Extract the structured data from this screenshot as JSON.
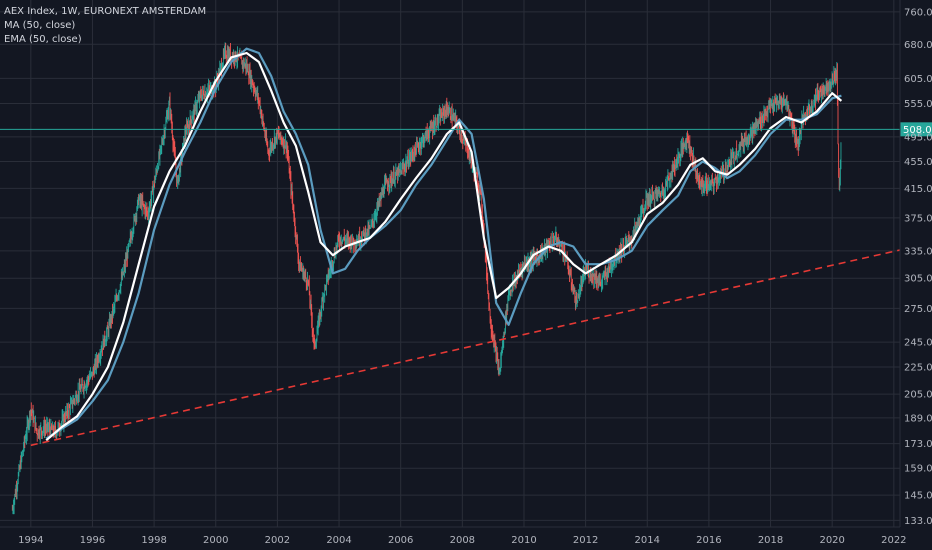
{
  "legend": {
    "title": "AEX Index, 1W, EURONEXT AMSTERDAM",
    "ma": "MA (50, close)",
    "ema": "EMA (50, close)"
  },
  "colors": {
    "background": "#131722",
    "grid": "#2a2e39",
    "up": "#26a69a",
    "down": "#ef5350",
    "ma": "#ffffff",
    "ema": "#5b9cc0",
    "trendline": "#e53935",
    "price_line": "#26a69a"
  },
  "chart_data": {
    "type": "candlestick",
    "title": "AEX Index, 1W, EURONEXT AMSTERDAM",
    "xlabel": "",
    "ylabel": "",
    "y_scale": "log",
    "ylim": [
      130,
      770
    ],
    "xlim": [
      1993.0,
      2022.2
    ],
    "grid": true,
    "y_ticks": [
      760.0,
      680.0,
      605.0,
      555.0,
      495.0,
      455.0,
      415.0,
      375.0,
      335.0,
      305.0,
      275.0,
      245.0,
      225.0,
      205.0,
      189.0,
      173.0,
      159.0,
      145.0,
      133.0
    ],
    "y_tick_labels": [
      "760.00",
      "680.00",
      "605.00",
      "555.00",
      "495.00",
      "455.00",
      "415.00",
      "375.00",
      "335.00",
      "305.00",
      "275.00",
      "245.00",
      "225.00",
      "205.00",
      "189.00",
      "173.00",
      "159.00",
      "145.00",
      "133.00"
    ],
    "x_ticks": [
      1994,
      1996,
      1998,
      2000,
      2002,
      2004,
      2006,
      2008,
      2010,
      2012,
      2014,
      2016,
      2018,
      2020,
      2022
    ],
    "last_price": 508.04,
    "last_price_label": "508.04",
    "series": [
      {
        "name": "AEX Index",
        "kind": "price",
        "x": [
          1993.4,
          1993.7,
          1994.0,
          1994.2,
          1994.5,
          1994.8,
          1995.0,
          1995.5,
          1996.0,
          1996.5,
          1997.0,
          1997.5,
          1997.8,
          1998.2,
          1998.5,
          1998.75,
          1999.0,
          1999.5,
          2000.0,
          2000.3,
          2000.7,
          2001.0,
          2001.4,
          2001.7,
          2002.0,
          2002.3,
          2002.7,
          2003.0,
          2003.2,
          2003.5,
          2004.0,
          2004.5,
          2005.0,
          2005.5,
          2006.0,
          2006.5,
          2007.0,
          2007.5,
          2007.8,
          2008.2,
          2008.6,
          2008.9,
          2009.2,
          2009.5,
          2010.0,
          2010.5,
          2011.0,
          2011.3,
          2011.7,
          2012.0,
          2012.5,
          2013.0,
          2013.5,
          2014.0,
          2014.5,
          2015.0,
          2015.3,
          2015.7,
          2016.1,
          2016.5,
          2017.0,
          2017.5,
          2018.0,
          2018.5,
          2018.9,
          2019.0,
          2019.5,
          2020.0,
          2020.15,
          2020.22,
          2020.3
        ],
        "y": [
          138,
          165,
          195,
          180,
          183,
          180,
          186,
          205,
          220,
          255,
          310,
          400,
          380,
          470,
          555,
          420,
          500,
          570,
          590,
          660,
          650,
          630,
          560,
          470,
          500,
          480,
          320,
          300,
          240,
          290,
          350,
          345,
          360,
          420,
          440,
          475,
          510,
          545,
          520,
          470,
          410,
          265,
          220,
          290,
          320,
          330,
          350,
          335,
          280,
          315,
          300,
          330,
          350,
          400,
          410,
          460,
          495,
          420,
          420,
          440,
          480,
          510,
          550,
          560,
          480,
          520,
          570,
          600,
          620,
          400,
          508
        ]
      },
      {
        "name": "MA (50, close)",
        "kind": "ma",
        "x": [
          1994.5,
          1995.0,
          1995.5,
          1996.0,
          1996.5,
          1997.0,
          1997.5,
          1998.0,
          1998.5,
          1999.0,
          1999.5,
          2000.0,
          2000.5,
          2001.0,
          2001.4,
          2001.8,
          2002.2,
          2002.6,
          2003.0,
          2003.4,
          2003.8,
          2004.2,
          2004.6,
          2005.0,
          2005.5,
          2006.0,
          2006.5,
          2007.0,
          2007.5,
          2007.9,
          2008.3,
          2008.7,
          2009.1,
          2009.5,
          2009.9,
          2010.3,
          2010.8,
          2011.2,
          2011.6,
          2012.0,
          2012.5,
          2013.0,
          2013.5,
          2014.0,
          2014.5,
          2015.0,
          2015.4,
          2015.8,
          2016.2,
          2016.6,
          2017.0,
          2017.5,
          2018.0,
          2018.5,
          2019.0,
          2019.5,
          2020.0,
          2020.3
        ],
        "y": [
          175,
          183,
          190,
          205,
          225,
          262,
          320,
          390,
          440,
          480,
          540,
          600,
          650,
          660,
          640,
          580,
          520,
          480,
          410,
          345,
          330,
          340,
          345,
          350,
          370,
          400,
          430,
          460,
          500,
          520,
          470,
          350,
          285,
          295,
          310,
          330,
          340,
          335,
          320,
          310,
          320,
          330,
          345,
          380,
          395,
          420,
          450,
          460,
          440,
          435,
          450,
          475,
          510,
          530,
          520,
          540,
          575,
          560
        ]
      },
      {
        "name": "EMA (50, close)",
        "kind": "ema",
        "x": [
          1994.5,
          1995.0,
          1995.5,
          1996.0,
          1996.5,
          1997.0,
          1997.5,
          1998.0,
          1998.5,
          1999.0,
          1999.5,
          2000.0,
          2000.5,
          2001.0,
          2001.4,
          2001.8,
          2002.2,
          2002.6,
          2003.0,
          2003.4,
          2003.8,
          2004.2,
          2004.6,
          2005.0,
          2005.5,
          2006.0,
          2006.5,
          2007.0,
          2007.5,
          2007.9,
          2008.3,
          2008.7,
          2009.1,
          2009.5,
          2009.9,
          2010.3,
          2010.8,
          2011.2,
          2011.6,
          2012.0,
          2012.5,
          2013.0,
          2013.5,
          2014.0,
          2014.5,
          2015.0,
          2015.4,
          2015.8,
          2016.2,
          2016.6,
          2017.0,
          2017.5,
          2018.0,
          2018.5,
          2019.0,
          2019.5,
          2020.0,
          2020.3
        ],
        "y": [
          176,
          182,
          188,
          200,
          215,
          245,
          290,
          360,
          420,
          470,
          520,
          585,
          640,
          670,
          660,
          610,
          540,
          500,
          450,
          360,
          310,
          315,
          335,
          350,
          365,
          385,
          420,
          450,
          490,
          525,
          500,
          400,
          280,
          260,
          290,
          320,
          340,
          345,
          340,
          320,
          320,
          325,
          335,
          365,
          385,
          405,
          440,
          455,
          445,
          430,
          440,
          465,
          500,
          525,
          525,
          535,
          565,
          570
        ]
      },
      {
        "name": "",
        "kind": "trendline",
        "x": [
          1994.0,
          2022.2
        ],
        "y": [
          172,
          336
        ]
      }
    ]
  }
}
